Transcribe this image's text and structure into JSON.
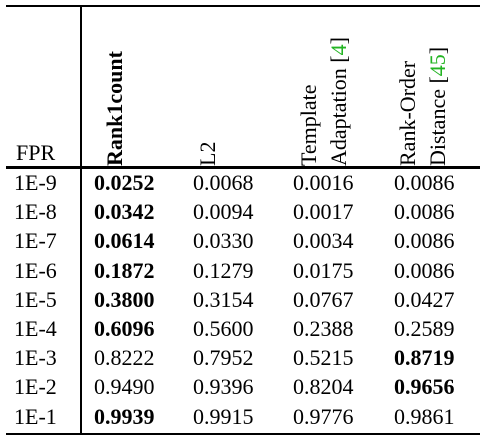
{
  "headers": {
    "fpr": "FPR",
    "rank1count": "Rank1count",
    "l2": "L2",
    "template_line1": "Template",
    "template_line2": "Adaptation [",
    "template_ref": "4",
    "template_close": "]",
    "rankorder_line1": "Rank-Order",
    "rankorder_line2": "Distance [",
    "rankorder_ref": "45",
    "rankorder_close": "]"
  },
  "ref_color": "#22b422",
  "rows": [
    {
      "fpr": "1E-9",
      "rank1count": "0.0252",
      "l2": "0.0068",
      "template": "0.0016",
      "rankorder": "0.0086",
      "bold": "rank1count"
    },
    {
      "fpr": "1E-8",
      "rank1count": "0.0342",
      "l2": "0.0094",
      "template": "0.0017",
      "rankorder": "0.0086",
      "bold": "rank1count"
    },
    {
      "fpr": "1E-7",
      "rank1count": "0.0614",
      "l2": "0.0330",
      "template": "0.0034",
      "rankorder": "0.0086",
      "bold": "rank1count"
    },
    {
      "fpr": "1E-6",
      "rank1count": "0.1872",
      "l2": "0.1279",
      "template": "0.0175",
      "rankorder": "0.0086",
      "bold": "rank1count"
    },
    {
      "fpr": "1E-5",
      "rank1count": "0.3800",
      "l2": "0.3154",
      "template": "0.0767",
      "rankorder": "0.0427",
      "bold": "rank1count"
    },
    {
      "fpr": "1E-4",
      "rank1count": "0.6096",
      "l2": "0.5600",
      "template": "0.2388",
      "rankorder": "0.2589",
      "bold": "rank1count"
    },
    {
      "fpr": "1E-3",
      "rank1count": "0.8222",
      "l2": "0.7952",
      "template": "0.5215",
      "rankorder": "0.8719",
      "bold": "rankorder"
    },
    {
      "fpr": "1E-2",
      "rank1count": "0.9490",
      "l2": "0.9396",
      "template": "0.8204",
      "rankorder": "0.9656",
      "bold": "rankorder"
    },
    {
      "fpr": "1E-1",
      "rank1count": "0.9939",
      "l2": "0.9915",
      "template": "0.9776",
      "rankorder": "0.9861",
      "bold": "rank1count"
    }
  ]
}
